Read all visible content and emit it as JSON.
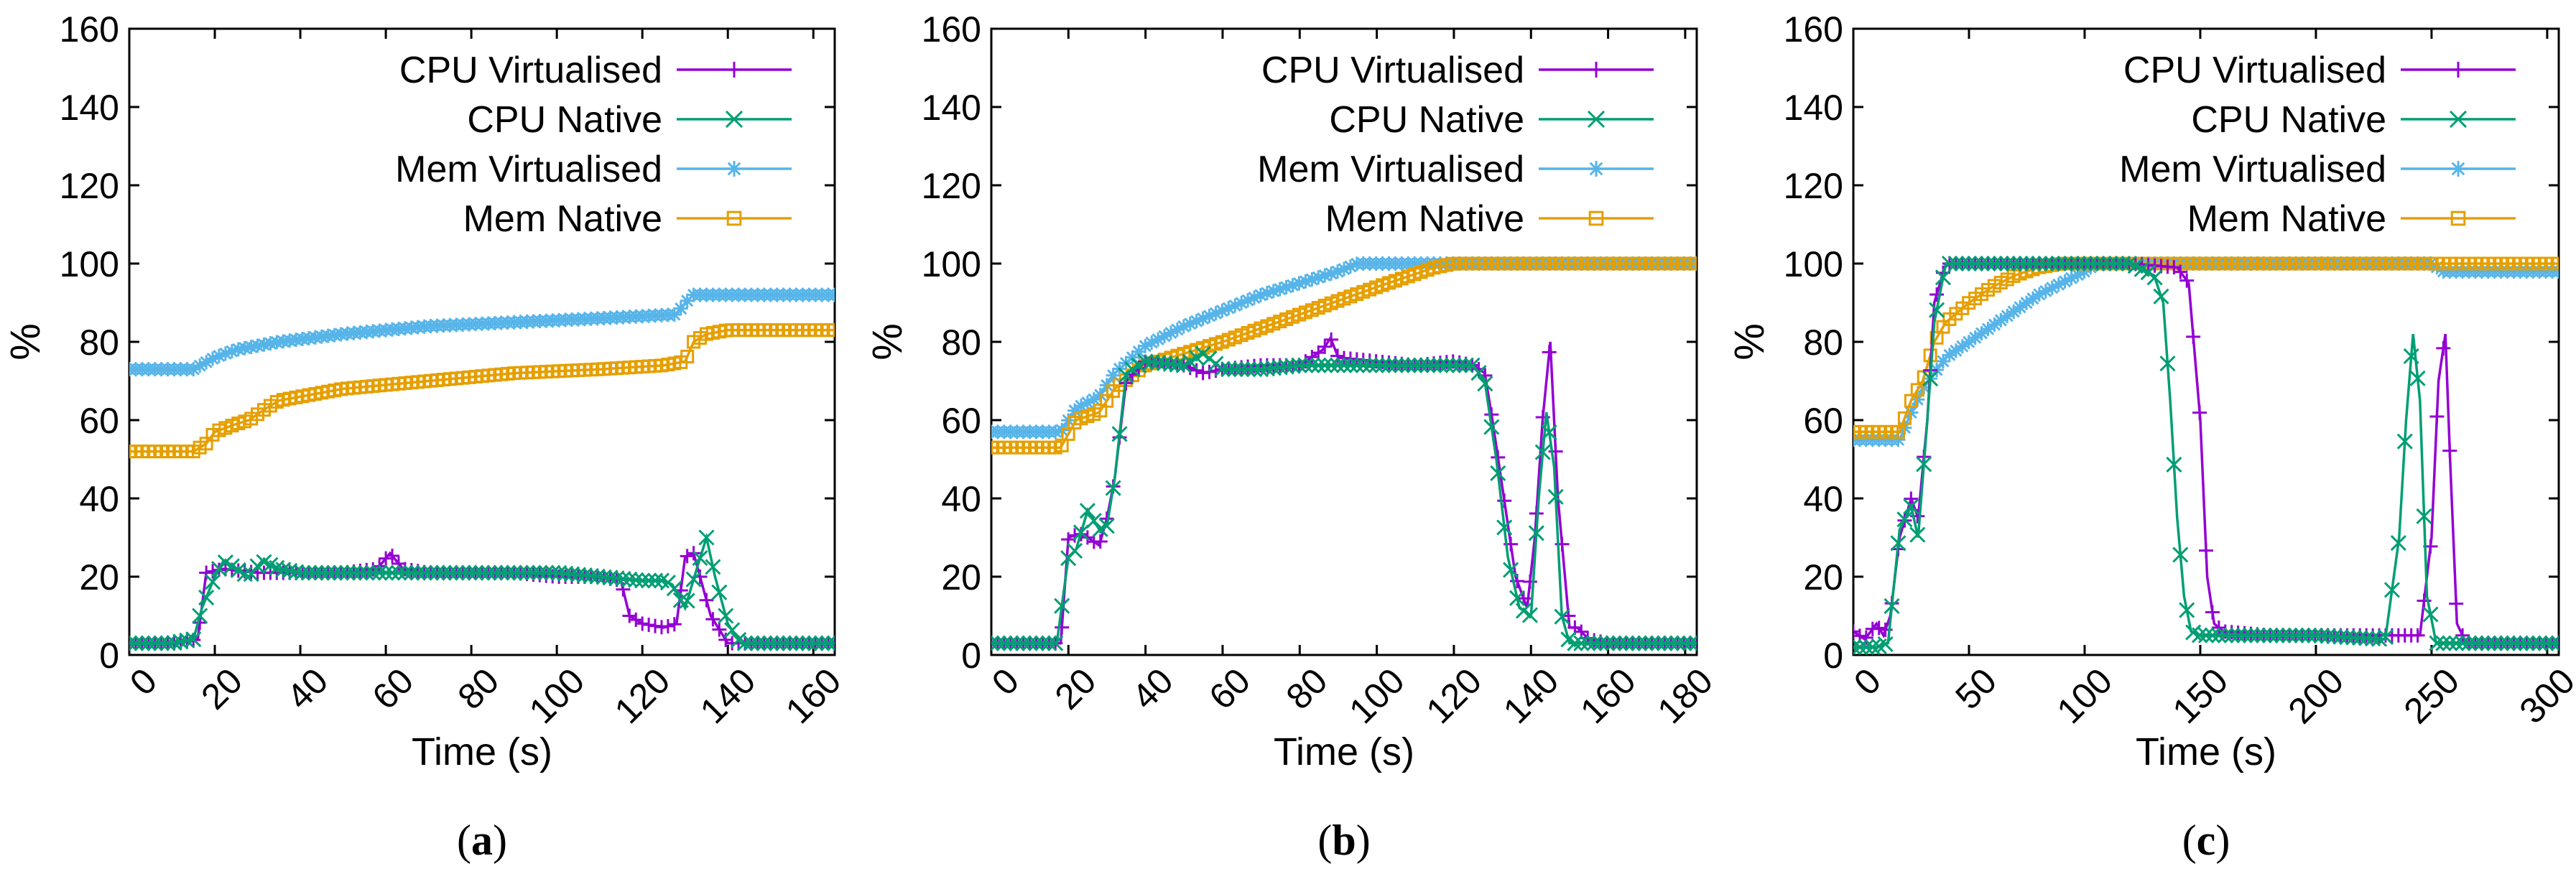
{
  "chart_data": [
    {
      "type": "line",
      "caption_letter": "a",
      "xlabel": "Time (s)",
      "ylabel": "%",
      "xlim": [
        0,
        165
      ],
      "ylim": [
        0,
        160
      ],
      "xticks": [
        0,
        20,
        40,
        60,
        80,
        100,
        120,
        140,
        160
      ],
      "yticks": [
        0,
        20,
        40,
        60,
        80,
        100,
        120,
        140,
        160
      ],
      "legend_position": "top-right",
      "series": [
        {
          "name": "CPU Virtualised",
          "color": "#9400d3",
          "marker": "plus",
          "x": [
            0,
            10,
            16,
            18,
            22,
            30,
            40,
            50,
            58,
            61,
            64,
            70,
            80,
            90,
            100,
            110,
            115,
            117,
            120,
            125,
            128,
            130,
            132,
            134,
            136,
            140,
            150,
            160,
            165
          ],
          "y": [
            3,
            3,
            4,
            21,
            22,
            21,
            21,
            21,
            22,
            26,
            22,
            21,
            21,
            21,
            20,
            20,
            19,
            10,
            8,
            7,
            8,
            25,
            26,
            18,
            10,
            3,
            3,
            3,
            3
          ]
        },
        {
          "name": "CPU Native",
          "color": "#009e73",
          "marker": "cross",
          "x": [
            0,
            10,
            15,
            17,
            20,
            22,
            25,
            28,
            31,
            35,
            40,
            50,
            60,
            70,
            80,
            90,
            100,
            110,
            120,
            125,
            127,
            130,
            133,
            135,
            137,
            140,
            143,
            150,
            160,
            165
          ],
          "y": [
            3,
            3,
            4,
            12,
            20,
            24,
            22,
            20,
            24,
            22,
            21,
            21,
            21,
            21,
            21,
            21,
            21,
            20,
            19,
            19,
            18,
            12,
            23,
            30,
            20,
            8,
            3,
            3,
            3,
            3
          ]
        },
        {
          "name": "Mem Virtualised",
          "color": "#56b4e9",
          "marker": "star",
          "x": [
            0,
            15,
            20,
            25,
            35,
            50,
            70,
            90,
            110,
            128,
            130,
            132,
            135,
            150,
            165
          ],
          "y": [
            73,
            73,
            76,
            78,
            80,
            82,
            84,
            85,
            86,
            87,
            90,
            92,
            92,
            92,
            92
          ]
        },
        {
          "name": "Mem Native",
          "color": "#e69f00",
          "marker": "square",
          "x": [
            0,
            15,
            18,
            20,
            25,
            28,
            32,
            35,
            40,
            50,
            70,
            90,
            110,
            125,
            130,
            132,
            135,
            140,
            165
          ],
          "y": [
            52,
            52,
            54,
            57,
            59,
            60,
            63,
            65,
            66,
            68,
            70,
            72,
            73,
            74,
            75,
            80,
            82,
            83,
            83
          ]
        }
      ]
    },
    {
      "type": "line",
      "caption_letter": "b",
      "xlabel": "Time (s)",
      "ylabel": "%",
      "xlim": [
        0,
        183
      ],
      "ylim": [
        0,
        160
      ],
      "xticks": [
        0,
        20,
        40,
        60,
        80,
        100,
        120,
        140,
        160,
        180
      ],
      "yticks": [
        0,
        20,
        40,
        60,
        80,
        100,
        120,
        140,
        160
      ],
      "legend_position": "top-right",
      "series": [
        {
          "name": "CPU Virtualised",
          "color": "#9400d3",
          "marker": "plus",
          "x": [
            0,
            10,
            18,
            20,
            23,
            25,
            28,
            30,
            32,
            35,
            40,
            50,
            55,
            60,
            70,
            80,
            86,
            88,
            90,
            100,
            110,
            120,
            125,
            128,
            130,
            133,
            136,
            139,
            141,
            143,
            145,
            147,
            150,
            152,
            155,
            160,
            170,
            183
          ],
          "y": [
            3,
            3,
            3,
            30,
            31,
            30,
            28,
            35,
            45,
            70,
            75,
            74,
            72,
            73,
            74,
            74,
            78,
            81,
            76,
            75,
            74,
            75,
            74,
            72,
            60,
            40,
            20,
            12,
            30,
            60,
            80,
            40,
            7,
            7,
            4,
            3,
            3,
            3
          ]
        },
        {
          "name": "CPU Native",
          "color": "#009e73",
          "marker": "cross",
          "x": [
            0,
            10,
            17,
            20,
            22,
            25,
            28,
            30,
            32,
            35,
            40,
            50,
            55,
            60,
            70,
            80,
            90,
            100,
            110,
            120,
            125,
            128,
            131,
            134,
            137,
            140,
            142,
            144,
            146,
            148,
            150,
            160,
            170,
            183
          ],
          "y": [
            3,
            3,
            3,
            25,
            27,
            37,
            32,
            33,
            45,
            72,
            75,
            74,
            77,
            73,
            73,
            74,
            74,
            74,
            74,
            74,
            74,
            70,
            50,
            25,
            12,
            10,
            40,
            62,
            48,
            10,
            3,
            3,
            3,
            3
          ]
        },
        {
          "name": "Mem Virtualised",
          "color": "#56b4e9",
          "marker": "star",
          "x": [
            0,
            18,
            22,
            28,
            32,
            40,
            50,
            60,
            70,
            80,
            90,
            95,
            183
          ],
          "y": [
            57,
            57,
            63,
            66,
            72,
            79,
            84,
            88,
            92,
            95,
            98,
            100,
            100
          ]
        },
        {
          "name": "Mem Native",
          "color": "#e69f00",
          "marker": "square",
          "x": [
            0,
            18,
            22,
            28,
            32,
            40,
            60,
            80,
            100,
            115,
            120,
            183
          ],
          "y": [
            53,
            53,
            60,
            62,
            68,
            74,
            80,
            87,
            94,
            99,
            100,
            100
          ]
        }
      ]
    },
    {
      "type": "line",
      "caption_letter": "c",
      "xlabel": "Time (s)",
      "ylabel": "%",
      "xlim": [
        0,
        305
      ],
      "ylim": [
        0,
        160
      ],
      "xticks": [
        0,
        50,
        100,
        150,
        200,
        250,
        300
      ],
      "yticks": [
        0,
        20,
        40,
        60,
        80,
        100,
        120,
        140,
        160
      ],
      "legend_position": "top-right",
      "series": [
        {
          "name": "CPU Virtualised",
          "color": "#9400d3",
          "marker": "plus",
          "x": [
            0,
            5,
            10,
            13,
            16,
            20,
            25,
            28,
            32,
            35,
            40,
            50,
            60,
            80,
            100,
            120,
            140,
            145,
            150,
            153,
            156,
            160,
            180,
            200,
            220,
            240,
            245,
            250,
            253,
            256,
            258,
            261,
            265,
            280,
            300,
            305
          ],
          "y": [
            6,
            4,
            8,
            5,
            10,
            30,
            40,
            35,
            60,
            90,
            100,
            100,
            100,
            100,
            100,
            100,
            99,
            95,
            60,
            20,
            8,
            6,
            5,
            5,
            5,
            5,
            5,
            30,
            70,
            82,
            50,
            8,
            3,
            3,
            3,
            3
          ]
        },
        {
          "name": "CPU Native",
          "color": "#009e73",
          "marker": "cross",
          "x": [
            0,
            10,
            15,
            20,
            25,
            28,
            32,
            35,
            40,
            50,
            60,
            80,
            100,
            120,
            130,
            134,
            137,
            140,
            143,
            146,
            150,
            170,
            200,
            230,
            236,
            239,
            242,
            245,
            248,
            252,
            260,
            280,
            300,
            305
          ],
          "y": [
            2,
            2,
            3,
            32,
            38,
            30,
            60,
            85,
            100,
            100,
            100,
            100,
            100,
            100,
            97,
            90,
            65,
            35,
            15,
            6,
            5,
            5,
            5,
            4,
            30,
            60,
            82,
            65,
            15,
            3,
            3,
            3,
            3,
            3
          ]
        },
        {
          "name": "Mem Virtualised",
          "color": "#56b4e9",
          "marker": "star",
          "x": [
            0,
            20,
            25,
            30,
            35,
            40,
            50,
            60,
            80,
            100,
            105,
            250,
            255,
            305
          ],
          "y": [
            55,
            55,
            62,
            68,
            72,
            76,
            80,
            84,
            92,
            98,
            100,
            100,
            98,
            98
          ]
        },
        {
          "name": "Mem Native",
          "color": "#e69f00",
          "marker": "square",
          "x": [
            0,
            20,
            25,
            30,
            35,
            40,
            50,
            60,
            70,
            80,
            90,
            305
          ],
          "y": [
            57,
            57,
            65,
            70,
            80,
            85,
            90,
            94,
            97,
            99,
            100,
            100
          ]
        }
      ]
    }
  ]
}
